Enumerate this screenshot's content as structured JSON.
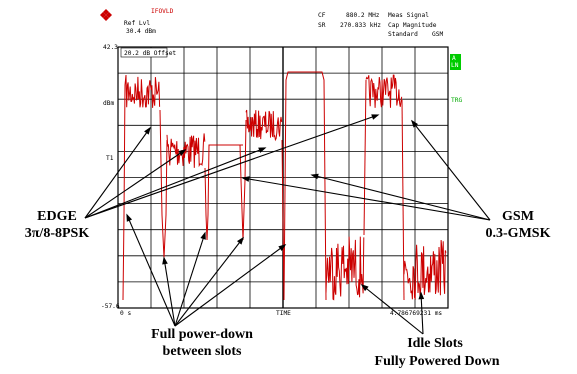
{
  "header": {
    "overload": "IFOVLD",
    "ref_lvl_label": "Ref Lvl",
    "ref_lvl_value": "30.4 dBm",
    "cf_label": "CF",
    "cf_value": "880.2 MHz",
    "sr_label": "SR",
    "sr_value": "270.833 kHz",
    "meas_signal": "Meas Signal",
    "cap_magnitude": "Cap Magnitude",
    "standard_label": "Standard",
    "standard_value": "GSM"
  },
  "screen": {
    "y_top": "42.3",
    "y_bottom": "-57.6",
    "offset": "20.2 dB Offset",
    "unit": "dBm",
    "trace_label": "T1",
    "x_start": "0 s",
    "x_mid": "TIME",
    "x_end": "4.786769231 ms",
    "side_a": "A",
    "side_ln": "LN",
    "side_trg": "TRG",
    "trace_color": "#cc0000"
  },
  "annotations": {
    "edge_line1": "EDGE",
    "edge_line2": "3π/8-8PSK",
    "gsm_line1": "GSM",
    "gsm_line2": "0.3-GMSK",
    "powerdown_line1": "Full power-down",
    "powerdown_line2": "between slots",
    "idle_line1": "Idle Slots",
    "idle_line2": "Fully Powered Down"
  }
}
